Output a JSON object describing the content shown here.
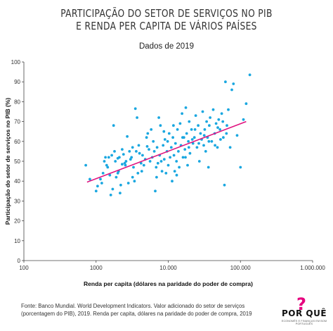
{
  "header": {
    "title_line1": "PARTICIPAÇÃO DO SETOR DE SERVIÇOS NO PIB",
    "title_line2": "E RENDA PER CAPITA DE VÁRIOS PAÍSES",
    "subtitle": "Dados de 2019"
  },
  "source_text": "Fonte: Banco Mundial. World Development Indicators. Valor adicionado do setor de serviços (porcentagem do PIB), 2019. Renda per capita, dólares na paridade do poder de compra, 2019",
  "logo": {
    "word": "POR QUÊ",
    "mark": "?",
    "tagline": "ECONOMÊS E FINANÇAS EM BOM PORTUGUÊS"
  },
  "colors": {
    "points": "#1aa7e0",
    "trend": "#e0127f",
    "axis": "#444444"
  },
  "chart_data": {
    "type": "scatter",
    "xscale": "log",
    "xlabel": "Renda per capita (dólares na paridade do poder de compra)",
    "ylabel": "Participação do setor de serviços no PIB (%)",
    "xlim": [
      100,
      1000000
    ],
    "ylim": [
      0,
      100
    ],
    "xticks": [
      100,
      1000,
      10000,
      100000,
      1000000
    ],
    "xtick_labels": [
      "100",
      "1000",
      "10.000",
      "100.000",
      "1.000.000"
    ],
    "yticks": [
      0,
      10,
      20,
      30,
      40,
      50,
      60,
      70,
      80,
      90,
      100
    ],
    "grid": false,
    "trendline": {
      "x": [
        750,
        120000
      ],
      "y": [
        39.5,
        70
      ]
    },
    "points": [
      [
        720,
        48
      ],
      [
        820,
        41
      ],
      [
        1000,
        35
      ],
      [
        1050,
        37.5
      ],
      [
        1150,
        41
      ],
      [
        1200,
        39
      ],
      [
        1250,
        44
      ],
      [
        1300,
        50
      ],
      [
        1350,
        52
      ],
      [
        1400,
        48
      ],
      [
        1450,
        47
      ],
      [
        1500,
        52
      ],
      [
        1550,
        43
      ],
      [
        1600,
        33
      ],
      [
        1650,
        53
      ],
      [
        1700,
        36
      ],
      [
        1750,
        68
      ],
      [
        1800,
        55
      ],
      [
        1850,
        50
      ],
      [
        1900,
        42
      ],
      [
        2000,
        51.5
      ],
      [
        2050,
        45
      ],
      [
        2100,
        52
      ],
      [
        2150,
        34
      ],
      [
        2200,
        38
      ],
      [
        2300,
        56
      ],
      [
        2400,
        53.5
      ],
      [
        2500,
        49
      ],
      [
        2550,
        48
      ],
      [
        2600,
        50
      ],
      [
        2700,
        62.5
      ],
      [
        2800,
        39
      ],
      [
        2900,
        55
      ],
      [
        3000,
        51
      ],
      [
        3100,
        52
      ],
      [
        3200,
        42
      ],
      [
        3300,
        47
      ],
      [
        3400,
        40
      ],
      [
        3500,
        76.5
      ],
      [
        3600,
        55
      ],
      [
        3700,
        72
      ],
      [
        3800,
        44
      ],
      [
        3900,
        58
      ],
      [
        4000,
        54
      ],
      [
        4200,
        49
      ],
      [
        4400,
        53
      ],
      [
        4600,
        48
      ],
      [
        4800,
        51
      ],
      [
        5000,
        62
      ],
      [
        5200,
        64
      ],
      [
        5400,
        56
      ],
      [
        5600,
        50
      ],
      [
        5800,
        66
      ],
      [
        6000,
        52
      ],
      [
        6200,
        60
      ],
      [
        6400,
        55
      ],
      [
        6600,
        35
      ],
      [
        6800,
        47
      ],
      [
        7000,
        57
      ],
      [
        7200,
        49
      ],
      [
        7400,
        72
      ],
      [
        7600,
        53
      ],
      [
        7800,
        68
      ],
      [
        8000,
        50
      ],
      [
        8200,
        45
      ],
      [
        8500,
        58
      ],
      [
        8800,
        51
      ],
      [
        9000,
        61
      ],
      [
        9300,
        44
      ],
      [
        9600,
        55
      ],
      [
        10000,
        48
      ],
      [
        10300,
        64
      ],
      [
        10600,
        52
      ],
      [
        11000,
        57
      ],
      [
        11300,
        40
      ],
      [
        11600,
        62
      ],
      [
        12000,
        53
      ],
      [
        12300,
        45
      ],
      [
        12600,
        59
      ],
      [
        13000,
        50
      ],
      [
        13400,
        66
      ],
      [
        13800,
        55
      ],
      [
        14200,
        47
      ],
      [
        14600,
        69
      ],
      [
        15000,
        58
      ],
      [
        15500,
        74
      ],
      [
        16000,
        52
      ],
      [
        16500,
        62
      ],
      [
        17000,
        56
      ],
      [
        17500,
        77
      ],
      [
        18000,
        64
      ],
      [
        18500,
        48
      ],
      [
        19000,
        60
      ],
      [
        19500,
        70
      ],
      [
        20000,
        54
      ],
      [
        21000,
        66
      ],
      [
        22000,
        59
      ],
      [
        23000,
        62
      ],
      [
        24000,
        73
      ],
      [
        25000,
        57
      ],
      [
        26000,
        68
      ],
      [
        27000,
        50
      ],
      [
        28000,
        64
      ],
      [
        29000,
        61
      ],
      [
        30000,
        75
      ],
      [
        31000,
        58
      ],
      [
        32000,
        66
      ],
      [
        33000,
        55
      ],
      [
        34000,
        70
      ],
      [
        35000,
        62
      ],
      [
        36000,
        47
      ],
      [
        37000,
        68
      ],
      [
        38000,
        72
      ],
      [
        40000,
        60
      ],
      [
        42000,
        76
      ],
      [
        44000,
        64
      ],
      [
        46000,
        69
      ],
      [
        48000,
        57
      ],
      [
        50000,
        71
      ],
      [
        52000,
        66
      ],
      [
        55000,
        74
      ],
      [
        58000,
        62
      ],
      [
        60000,
        38
      ],
      [
        62000,
        90
      ],
      [
        65000,
        68
      ],
      [
        68000,
        76
      ],
      [
        72000,
        57
      ],
      [
        76000,
        86
      ],
      [
        80000,
        89
      ],
      [
        90000,
        63
      ],
      [
        100000,
        47
      ],
      [
        110000,
        71
      ],
      [
        120000,
        79
      ],
      [
        135000,
        93.5
      ],
      [
        2000,
        44
      ],
      [
        2300,
        48.5
      ],
      [
        3200,
        57
      ],
      [
        4300,
        45
      ],
      [
        5100,
        57.5
      ],
      [
        6900,
        42
      ],
      [
        8700,
        65
      ],
      [
        9800,
        60
      ],
      [
        11800,
        68
      ],
      [
        13100,
        43
      ],
      [
        15800,
        62
      ],
      [
        17300,
        52
      ],
      [
        19300,
        57
      ],
      [
        21500,
        61
      ],
      [
        23500,
        66
      ],
      [
        26500,
        59
      ],
      [
        31500,
        63
      ],
      [
        36500,
        60
      ],
      [
        44500,
        58
      ],
      [
        48500,
        67
      ],
      [
        53000,
        61
      ],
      [
        57000,
        70
      ],
      [
        64000,
        64
      ]
    ]
  }
}
